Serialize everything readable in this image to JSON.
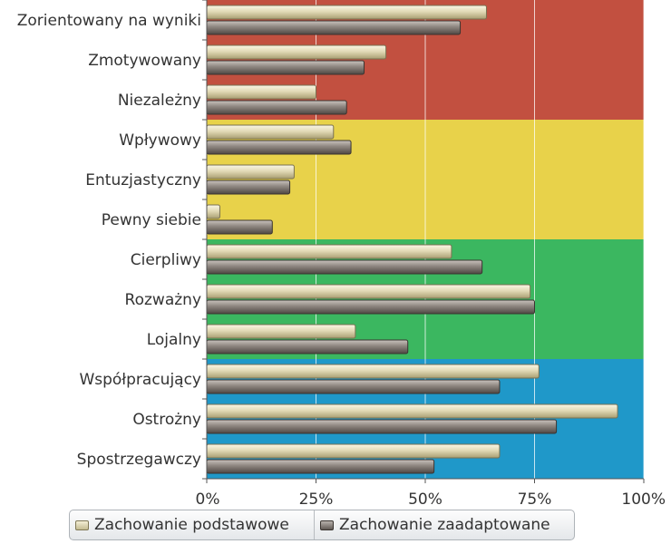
{
  "chart_data": {
    "type": "bar",
    "orientation": "horizontal",
    "categories": [
      "Zorientowany na wyniki",
      "Zmotywowany",
      "Niezależny",
      "Wpływowy",
      "Entuzjastyczny",
      "Pewny siebie",
      "Cierpliwy",
      "Rozważny",
      "Lojalny",
      "Współpracujący",
      "Ostrożny",
      "Spostrzegawczy"
    ],
    "series": [
      {
        "name": "Zachowanie podstawowe",
        "values": [
          64,
          41,
          25,
          29,
          20,
          3,
          56,
          74,
          34,
          76,
          94,
          67
        ],
        "color": "#d8d0a8"
      },
      {
        "name": "Zachowanie zaadaptowane",
        "values": [
          58,
          36,
          32,
          33,
          19,
          15,
          63,
          75,
          46,
          67,
          80,
          52
        ],
        "color": "#8a827c"
      }
    ],
    "xlim": [
      0,
      100
    ],
    "x_ticks": [
      "0%",
      "25%",
      "50%",
      "75%",
      "100%"
    ],
    "grid": true,
    "legend_position": "bottom",
    "band_colors": [
      "#c25040",
      "#e8d24a",
      "#3bb760",
      "#1f98c9"
    ],
    "band_groups": [
      [
        0,
        2
      ],
      [
        3,
        5
      ],
      [
        6,
        8
      ],
      [
        9,
        11
      ]
    ]
  }
}
